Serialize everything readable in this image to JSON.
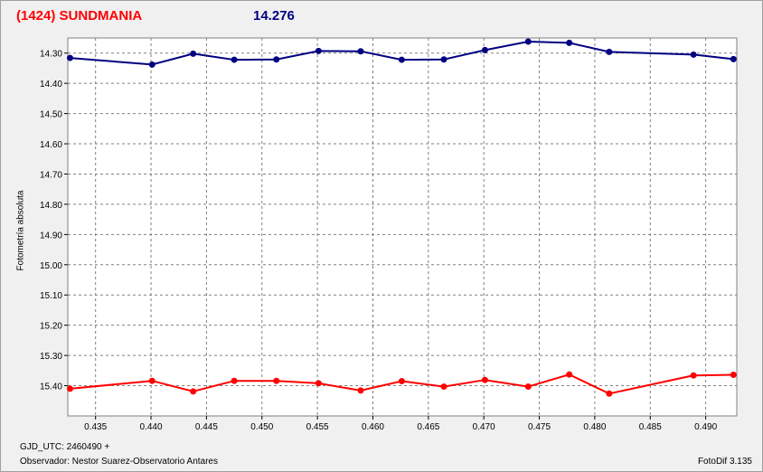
{
  "header": {
    "title": "(1424) SUNDMANIA",
    "magnitude": "14.276"
  },
  "footer": {
    "gjd": "GJD_UTC: 2460490 +",
    "observer": "Observador: Nestor Suarez-Observatorio Antares",
    "version": "FotoDif 3.135"
  },
  "chart_data": {
    "type": "line",
    "title": "(1424) SUNDMANIA",
    "ylabel": "Fotometría absoluta",
    "xlabel": "",
    "xlim": [
      0.4325,
      0.4928
    ],
    "ylim": [
      15.5,
      14.25
    ],
    "y_inverted": true,
    "grid": true,
    "x_ticks": [
      "0.435",
      "0.440",
      "0.445",
      "0.450",
      "0.455",
      "0.460",
      "0.465",
      "0.470",
      "0.475",
      "0.480",
      "0.485",
      "0.490"
    ],
    "y_ticks": [
      "14.30",
      "14.40",
      "14.50",
      "14.60",
      "14.70",
      "14.80",
      "14.90",
      "15.00",
      "15.10",
      "15.20",
      "15.30",
      "15.40"
    ],
    "series": [
      {
        "color": "#000080",
        "x": [
          0.4327,
          0.4401,
          0.4438,
          0.4475,
          0.4513,
          0.4551,
          0.4589,
          0.4626,
          0.4664,
          0.4701,
          0.474,
          0.4777,
          0.4813,
          0.4889,
          0.4925
        ],
        "y": [
          14.316,
          14.338,
          14.302,
          14.322,
          14.321,
          14.293,
          14.294,
          14.322,
          14.321,
          14.29,
          14.262,
          14.266,
          14.296,
          14.305,
          14.32
        ]
      },
      {
        "color": "#ff0000",
        "x": [
          0.4327,
          0.4401,
          0.4438,
          0.4475,
          0.4513,
          0.4551,
          0.4589,
          0.4626,
          0.4664,
          0.4701,
          0.474,
          0.4777,
          0.4813,
          0.4889,
          0.4925
        ],
        "y": [
          15.41,
          15.384,
          15.419,
          15.384,
          15.384,
          15.392,
          15.416,
          15.385,
          15.403,
          15.381,
          15.403,
          15.363,
          15.426,
          15.366,
          15.364
        ]
      }
    ]
  }
}
